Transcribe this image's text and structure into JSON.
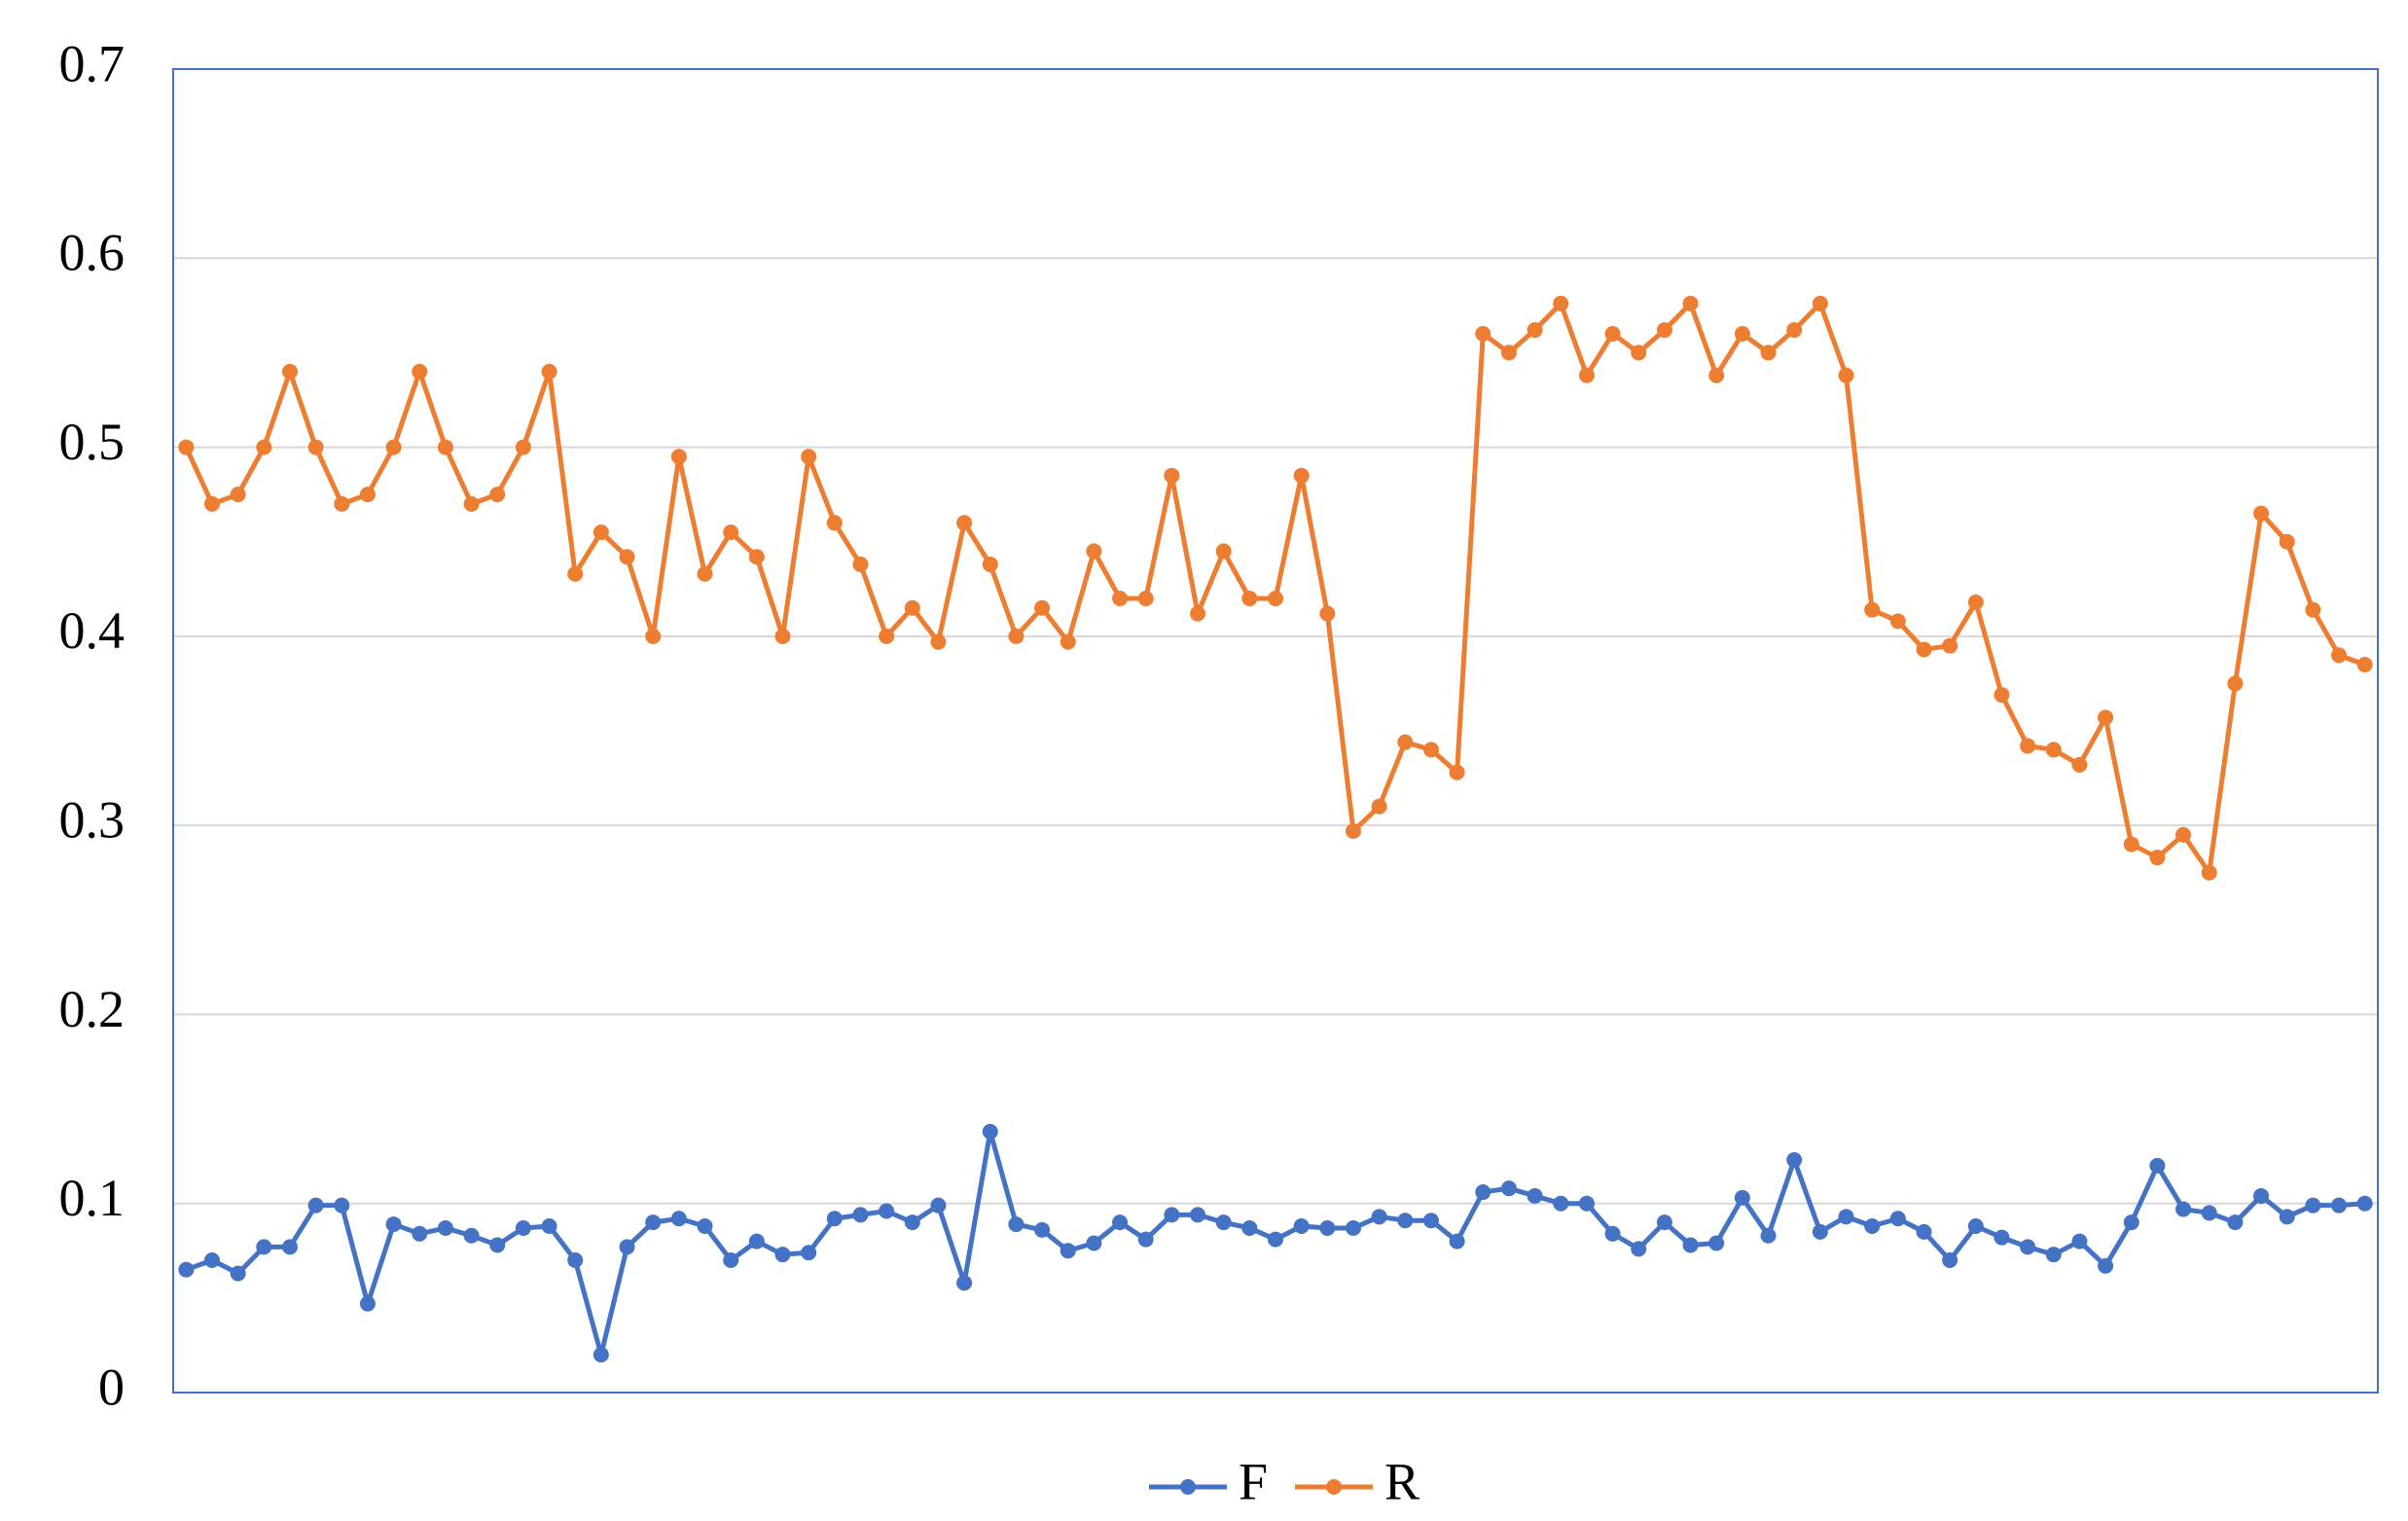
{
  "chart_data": {
    "type": "line",
    "categories": [
      null,
      null,
      null,
      null,
      null,
      null,
      null,
      null,
      null,
      null,
      null,
      null,
      null,
      null,
      null,
      null,
      null,
      null,
      null,
      null,
      null,
      null,
      null,
      null,
      null,
      null,
      null,
      null,
      null,
      null,
      null,
      null,
      null,
      null,
      null,
      null,
      null,
      null,
      null,
      null,
      null,
      null,
      null,
      null,
      null,
      null,
      null,
      null,
      null,
      null,
      null,
      null,
      null,
      null,
      null,
      null,
      null,
      null,
      null,
      null,
      null,
      null,
      null,
      null,
      null,
      null,
      null,
      null,
      null,
      null,
      null,
      null,
      null,
      null,
      null,
      null,
      null,
      null,
      null,
      null,
      null,
      null,
      null,
      null,
      null
    ],
    "series": [
      {
        "name": "F",
        "color": "#4472c4",
        "values": [
          0.065,
          0.07,
          0.063,
          0.077,
          0.077,
          0.099,
          0.099,
          0.047,
          0.089,
          0.084,
          0.087,
          0.083,
          0.078,
          0.087,
          0.088,
          0.07,
          0.02,
          0.077,
          0.09,
          0.092,
          0.088,
          0.07,
          0.08,
          0.073,
          0.074,
          0.092,
          0.094,
          0.096,
          0.09,
          0.099,
          0.058,
          0.138,
          0.089,
          0.086,
          0.075,
          0.079,
          0.09,
          0.081,
          0.094,
          0.094,
          0.09,
          0.087,
          0.081,
          0.088,
          0.087,
          0.087,
          0.093,
          0.091,
          0.091,
          0.08,
          0.106,
          0.108,
          0.104,
          0.1,
          0.1,
          0.084,
          0.076,
          0.09,
          0.078,
          0.079,
          0.103,
          0.083,
          0.123,
          0.085,
          0.093,
          0.088,
          0.092,
          0.085,
          0.07,
          0.088,
          0.082,
          0.077,
          0.073,
          0.08,
          0.067,
          0.09,
          0.12,
          0.097,
          0.095,
          0.09,
          0.104,
          0.093,
          0.099,
          0.099,
          0.1
        ]
      },
      {
        "name": "R",
        "color": "#ed7d31",
        "values": [
          0.5,
          0.47,
          0.475,
          0.5,
          0.54,
          0.5,
          0.47,
          0.475,
          0.5,
          0.54,
          0.5,
          0.47,
          0.475,
          0.5,
          0.54,
          0.433,
          0.455,
          0.442,
          0.4,
          0.495,
          0.433,
          0.455,
          0.442,
          0.4,
          0.495,
          0.46,
          0.438,
          0.4,
          0.415,
          0.397,
          0.46,
          0.438,
          0.4,
          0.415,
          0.397,
          0.445,
          0.42,
          0.42,
          0.485,
          0.412,
          0.445,
          0.42,
          0.42,
          0.485,
          0.412,
          0.297,
          0.31,
          0.344,
          0.34,
          0.328,
          0.56,
          0.55,
          0.562,
          0.576,
          0.538,
          0.56,
          0.55,
          0.562,
          0.576,
          0.538,
          0.56,
          0.55,
          0.562,
          0.576,
          0.538,
          0.414,
          0.408,
          0.393,
          0.395,
          0.418,
          0.369,
          0.342,
          0.34,
          0.332,
          0.357,
          0.29,
          0.283,
          0.295,
          0.275,
          0.375,
          0.465,
          0.45,
          0.414,
          0.39,
          0.385
        ]
      }
    ],
    "ylim": [
      0,
      0.7
    ],
    "yticks": [
      0,
      0.1,
      0.2,
      0.3,
      0.4,
      0.5,
      0.6,
      0.7
    ],
    "grid": true,
    "legend": "bottom"
  }
}
